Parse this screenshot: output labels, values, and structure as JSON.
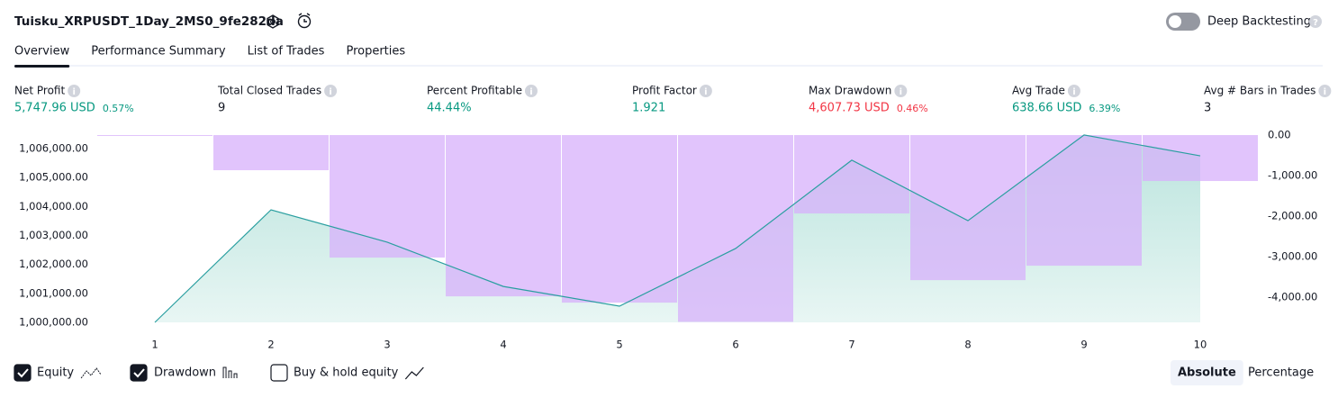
{
  "header": {
    "title": "Tuisku_XRPUSDT_1Day_2MS0_9fe282da",
    "toggle_label": "Deep Backtesting",
    "toggle_on": false
  },
  "tabs": [
    "Overview",
    "Performance Summary",
    "List of Trades",
    "Properties"
  ],
  "active_tab": 0,
  "metrics": [
    {
      "label": "Net Profit",
      "value": "5,747.96 USD",
      "percent": "0.57%",
      "color": "#089981"
    },
    {
      "label": "Total Closed Trades",
      "value": "9",
      "color": "#131722"
    },
    {
      "label": "Percent Profitable",
      "value": "44.44%",
      "color": "#089981"
    },
    {
      "label": "Profit Factor",
      "value": "1.921",
      "color": "#089981"
    },
    {
      "label": "Max Drawdown",
      "value": "4,607.73 USD",
      "percent": "0.46%",
      "color": "#f23645"
    },
    {
      "label": "Avg Trade",
      "value": "638.66 USD",
      "percent": "6.39%",
      "color": "#089981"
    },
    {
      "label": "Avg # Bars in Trades",
      "value": "3",
      "color": "#131722"
    }
  ],
  "chart_data": {
    "type": "equity-drawdown",
    "categories": [
      "1",
      "2",
      "3",
      "4",
      "5",
      "6",
      "7",
      "8",
      "9",
      "10"
    ],
    "series": [
      {
        "name": "Equity",
        "color": "#2a9fa0",
        "checked": true,
        "values": [
          1000000,
          1003886,
          1002770,
          1001240,
          1000560,
          1002550,
          1005600,
          1003510,
          1006470,
          1005748
        ]
      },
      {
        "name": "Drawdown",
        "color": "#d7b0fb",
        "checked": true,
        "axis": "y2",
        "values": [
          0,
          -867,
          -3022,
          -3978,
          -4133,
          -4608,
          -1933,
          -3578,
          -3222,
          -1133
        ]
      }
    ],
    "ylim": [
      1000000,
      1006466
    ],
    "yticks": [
      {
        "value": 1000000,
        "label": "1,000,000.00"
      },
      {
        "value": 1001000,
        "label": "1,001,000.00"
      },
      {
        "value": 1002000,
        "label": "1,002,000.00"
      },
      {
        "value": 1003000,
        "label": "1,003,000.00"
      },
      {
        "value": 1004000,
        "label": "1,004,000.00"
      },
      {
        "value": 1005000,
        "label": "1,005,000.00"
      },
      {
        "value": 1006000,
        "label": "1,006,000.00"
      }
    ],
    "y2lim": [
      -4620,
      0
    ],
    "y2ticks": [
      {
        "value": 0,
        "label": "0.00"
      },
      {
        "value": -1000,
        "label": "-1,000.00"
      },
      {
        "value": -2000,
        "label": "-2,000.00"
      },
      {
        "value": -3000,
        "label": "-3,000.00"
      },
      {
        "value": -4000,
        "label": "-4,000.00"
      }
    ]
  },
  "buy_hold": {
    "label": "Buy & hold equity",
    "checked": false
  },
  "buttons": [
    "Absolute",
    "Percentage"
  ],
  "active_button": 0
}
